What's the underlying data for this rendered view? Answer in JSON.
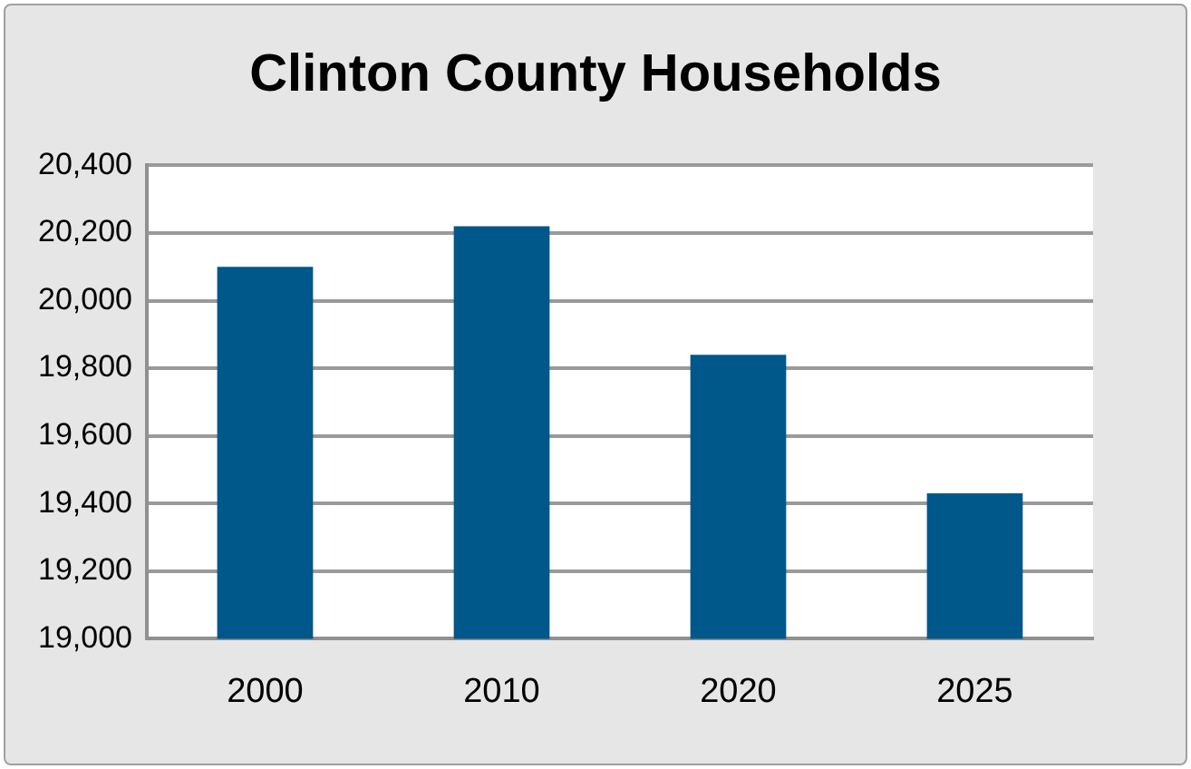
{
  "chart_data": {
    "type": "bar",
    "title": "Clinton County Households",
    "categories": [
      "2000",
      "2010",
      "2020",
      "2025"
    ],
    "values": [
      20100,
      20220,
      19840,
      19430
    ],
    "color": "#00578a",
    "ylim": [
      19000,
      20400
    ],
    "yticks": [
      {
        "value": 19000,
        "label": "19,000"
      },
      {
        "value": 19200,
        "label": "19,200"
      },
      {
        "value": 19400,
        "label": "19,400"
      },
      {
        "value": 19600,
        "label": "19,600"
      },
      {
        "value": 19800,
        "label": "19,800"
      },
      {
        "value": 20000,
        "label": "20,000"
      },
      {
        "value": 20200,
        "label": "20,200"
      },
      {
        "value": 20400,
        "label": "20,400"
      }
    ],
    "grid": "y",
    "legend": false
  }
}
